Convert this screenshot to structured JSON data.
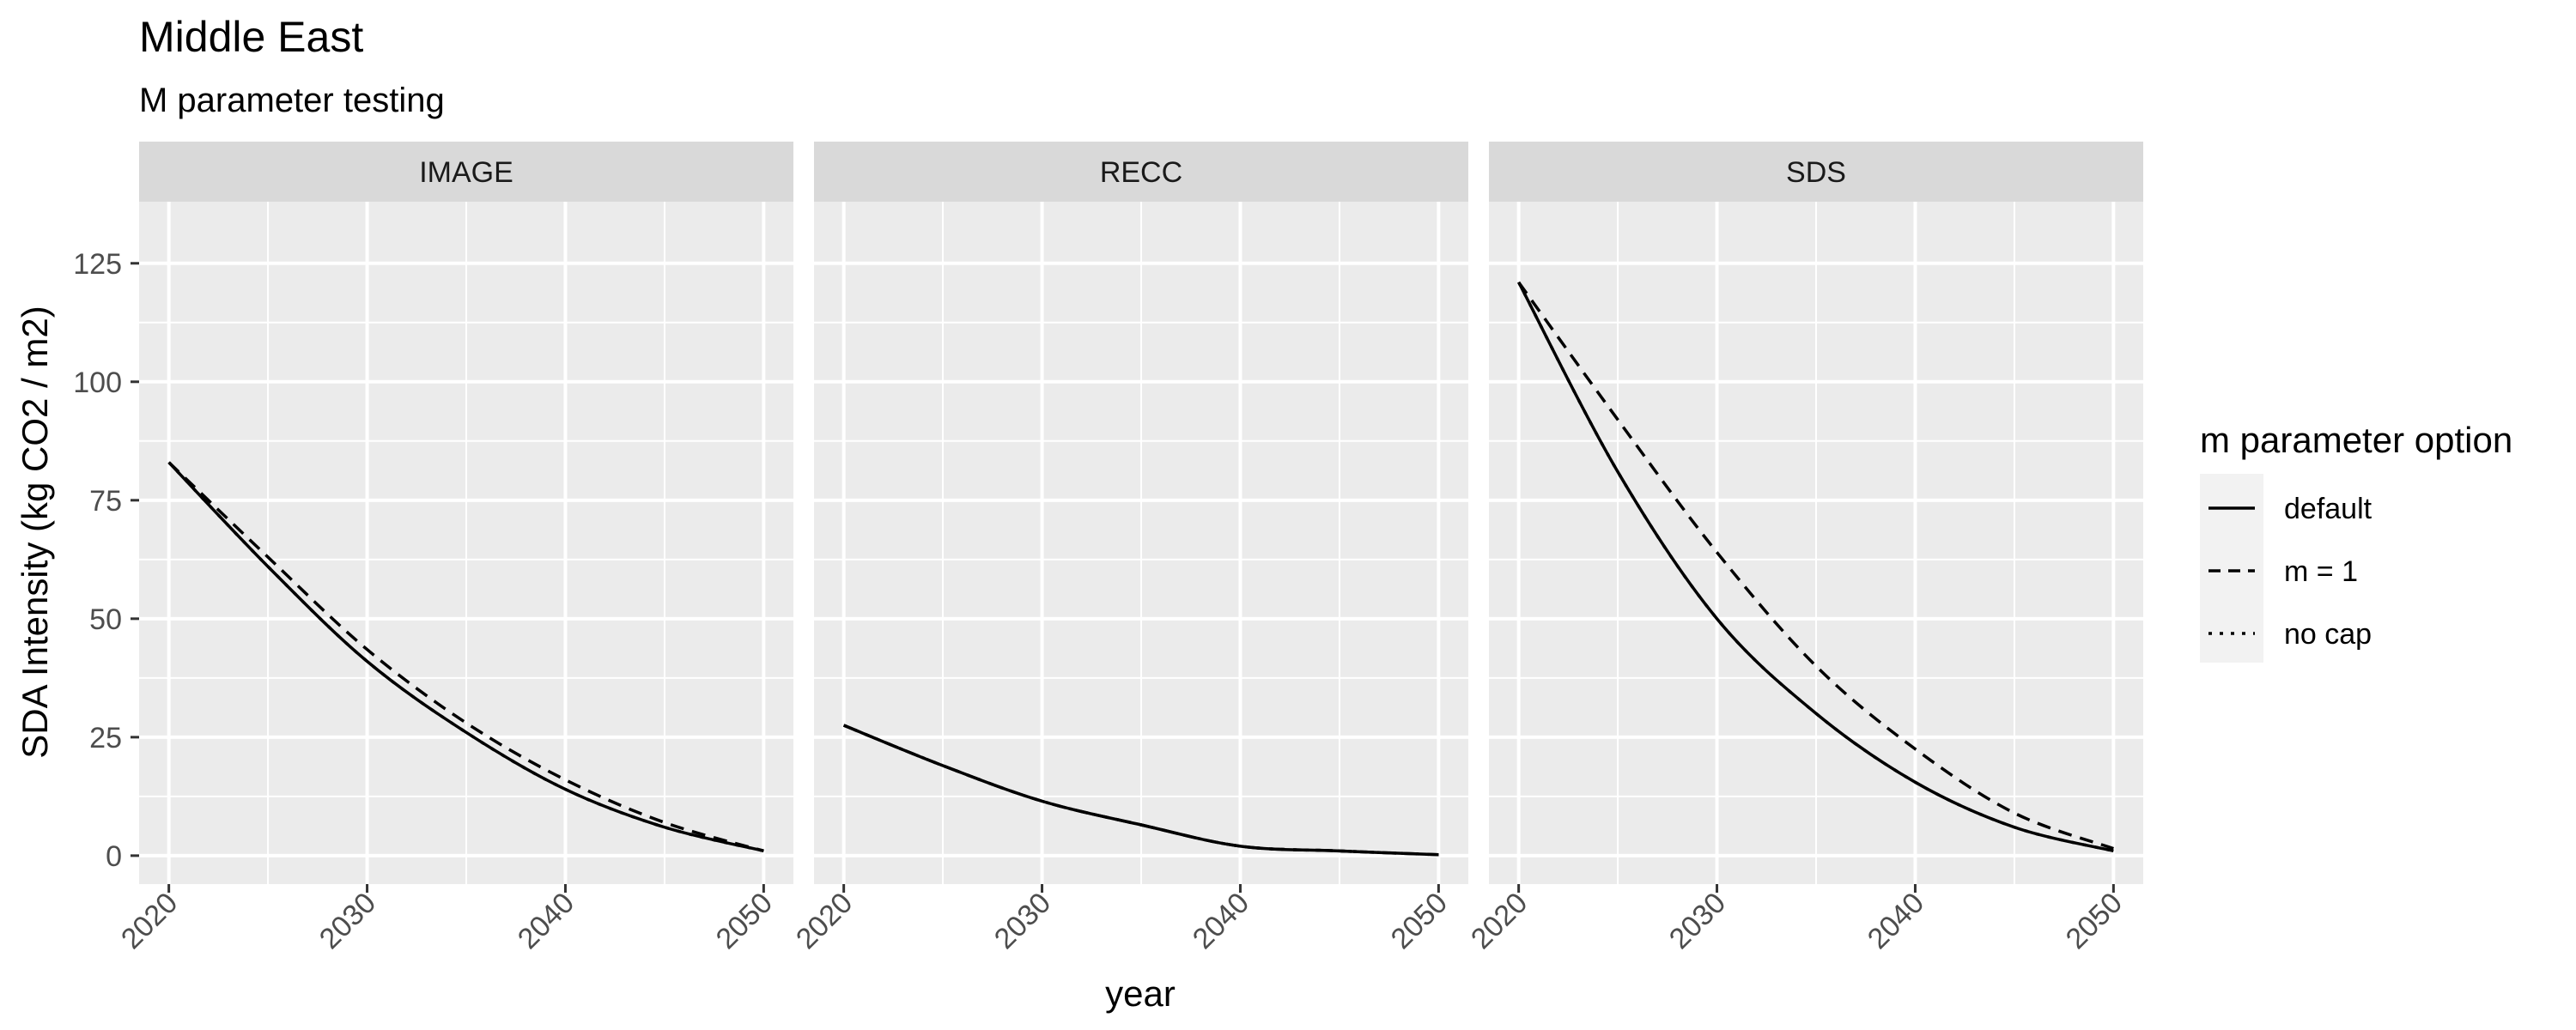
{
  "title": "Middle East",
  "subtitle": "M parameter testing",
  "chart_data": {
    "type": "line",
    "xlabel": "year",
    "ylabel": "SDA Intensity (kg CO2 / m2)",
    "x_ticks": [
      "2020",
      "2030",
      "2040",
      "2050"
    ],
    "y_ticks": [
      "0",
      "25",
      "50",
      "75",
      "100",
      "125"
    ],
    "xlim": [
      2018.5,
      2051.5
    ],
    "ylim": [
      -6,
      138
    ],
    "grid": true,
    "legend_position": "right",
    "legend_title": "m parameter option",
    "legend": [
      {
        "label": "default",
        "linetype": "solid"
      },
      {
        "label": "m = 1",
        "linetype": "dashed"
      },
      {
        "label": "no cap",
        "linetype": "dotted"
      }
    ],
    "panels": [
      {
        "name": "IMAGE",
        "series": [
          {
            "name": "default",
            "x": [
              2020,
              2025,
              2030,
              2035,
              2040,
              2045,
              2050
            ],
            "y": [
              83,
              61,
              41,
              26,
              14,
              6,
              1
            ]
          },
          {
            "name": "m = 1",
            "x": [
              2020,
              2025,
              2030,
              2035,
              2040,
              2045,
              2050
            ],
            "y": [
              83,
              63,
              43.5,
              28,
              16,
              7,
              1
            ]
          },
          {
            "name": "no cap",
            "x": [
              2020,
              2025,
              2030,
              2035,
              2040,
              2045,
              2050
            ],
            "y": [
              83,
              61,
              41,
              26,
              14,
              6,
              1
            ]
          }
        ]
      },
      {
        "name": "RECC",
        "series": [
          {
            "name": "default",
            "x": [
              2020,
              2025,
              2030,
              2035,
              2040,
              2045,
              2050
            ],
            "y": [
              27.5,
              19,
              11.5,
              6.5,
              2,
              1,
              0.2
            ]
          },
          {
            "name": "m = 1",
            "x": [
              2020,
              2025,
              2030,
              2035,
              2040,
              2045,
              2050
            ],
            "y": [
              27.5,
              19,
              11.5,
              6.5,
              2,
              1,
              0.2
            ]
          },
          {
            "name": "no cap",
            "x": [
              2020,
              2025,
              2030,
              2035,
              2040,
              2045,
              2050
            ],
            "y": [
              27.5,
              19,
              11.5,
              6.5,
              2,
              1,
              0.2
            ]
          }
        ]
      },
      {
        "name": "SDS",
        "series": [
          {
            "name": "default",
            "x": [
              2020,
              2025,
              2030,
              2035,
              2040,
              2045,
              2050
            ],
            "y": [
              121,
              81,
              50,
              30,
              15.5,
              6,
              1
            ]
          },
          {
            "name": "m = 1",
            "x": [
              2020,
              2025,
              2030,
              2035,
              2040,
              2045,
              2050
            ],
            "y": [
              121,
              92,
              64,
              40,
              22.5,
              9,
              1.5
            ]
          },
          {
            "name": "no cap",
            "x": [
              2020,
              2025,
              2030,
              2035,
              2040,
              2045,
              2050
            ],
            "y": [
              121,
              81,
              50,
              30,
              15.5,
              6,
              1
            ]
          }
        ]
      }
    ]
  }
}
